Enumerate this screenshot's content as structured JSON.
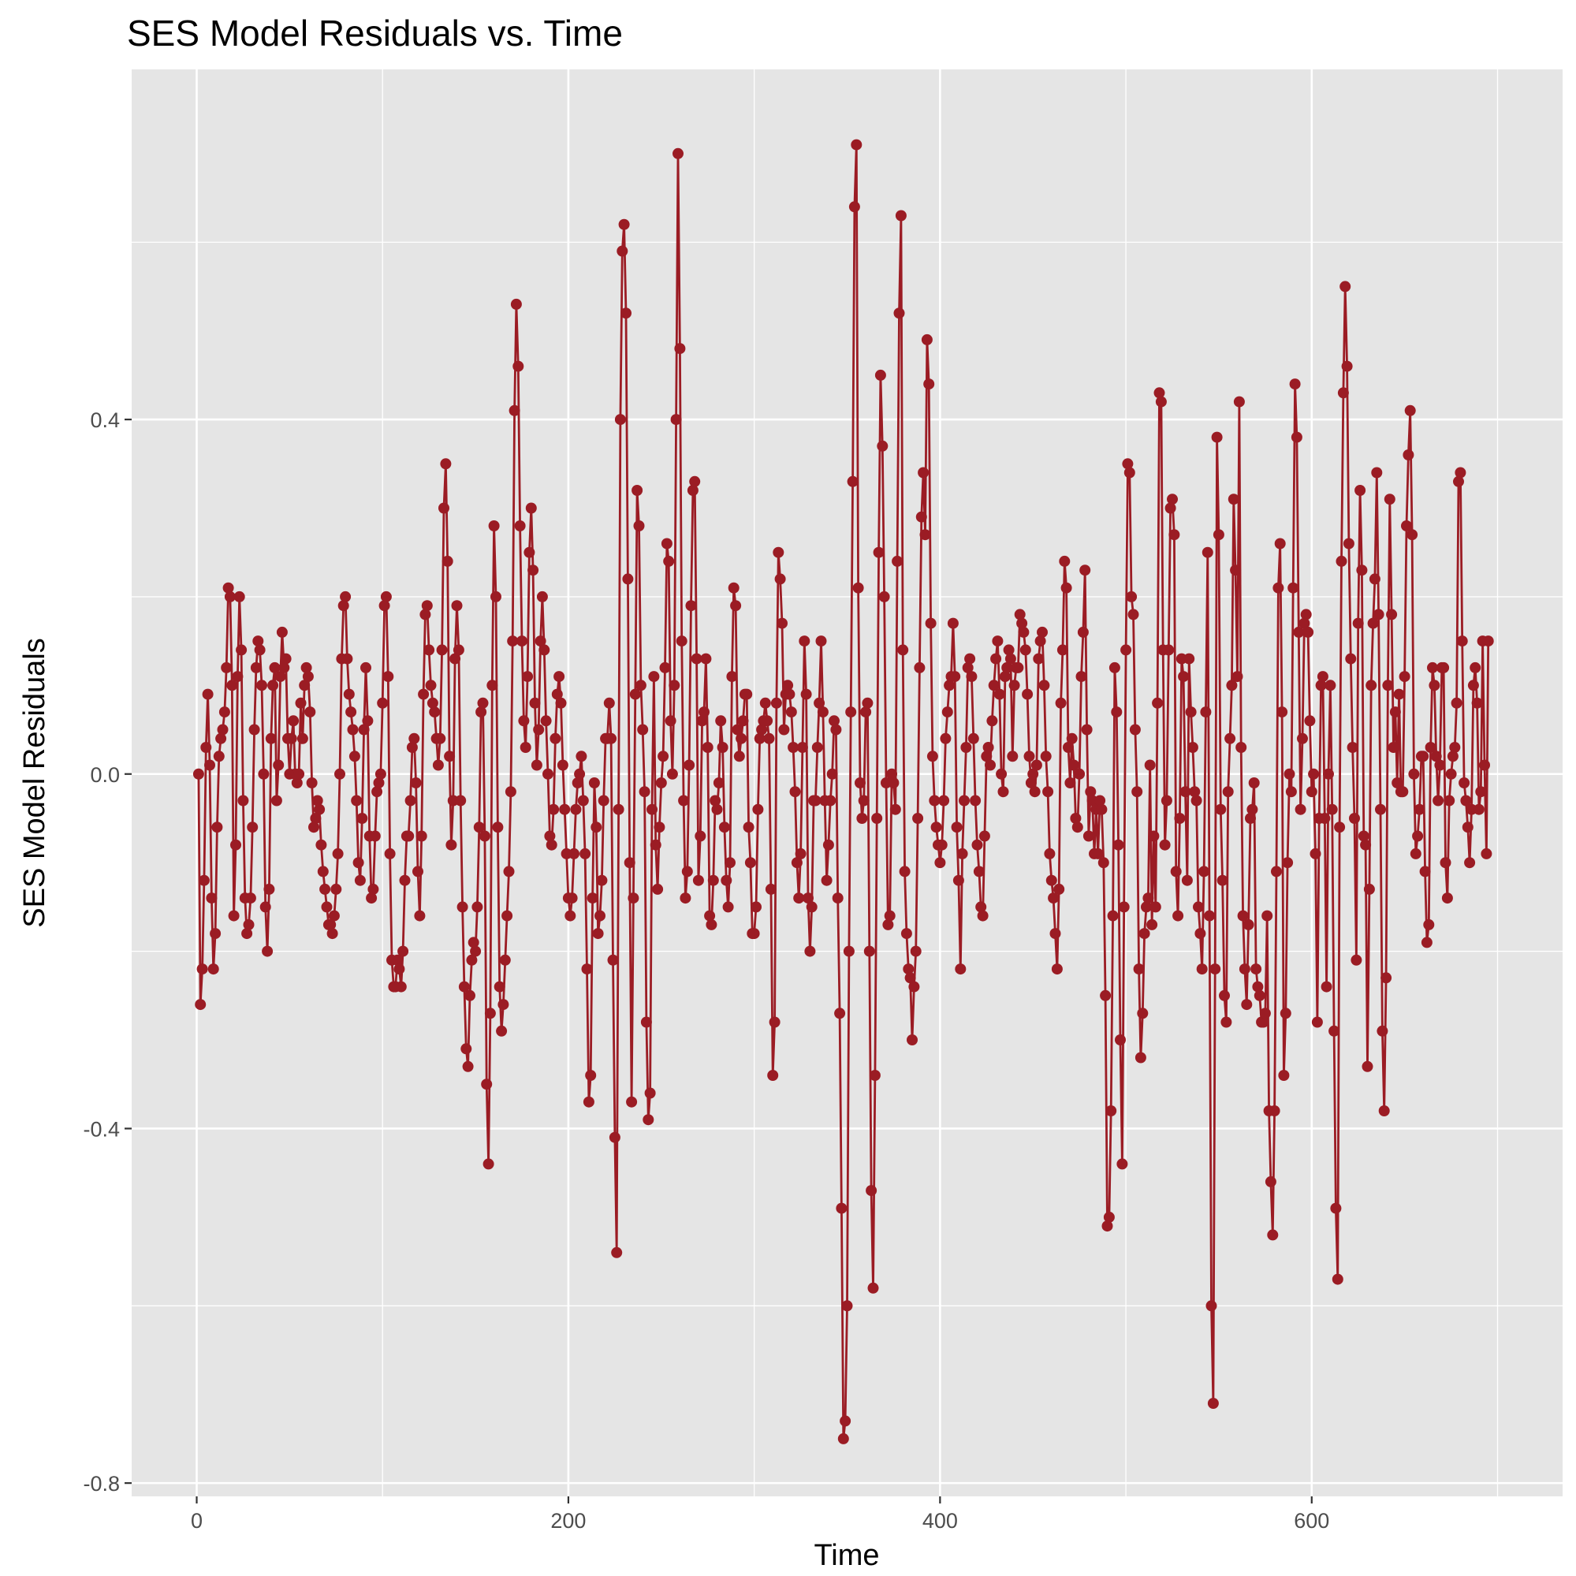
{
  "chart_data": {
    "type": "line",
    "title": "SES Model Residuals vs. Time",
    "xlabel": "Time",
    "ylabel": "SES Model Residuals",
    "xlim": [
      -35,
      735
    ],
    "ylim": [
      -0.815,
      0.795
    ],
    "x_ticks": [
      0,
      200,
      400,
      600
    ],
    "y_ticks": [
      -0.8,
      -0.4,
      0.0,
      0.4
    ],
    "x_tick_labels": [
      "0",
      "200",
      "400",
      "600"
    ],
    "y_tick_labels": [
      "-0.8",
      "-0.4",
      "0.0",
      "0.4"
    ],
    "grid": true,
    "markers": true,
    "series": [
      {
        "color": "#9b1c24",
        "x_start": 1,
        "x_step": 1,
        "values": [
          0.0,
          -0.26,
          -0.22,
          -0.12,
          0.03,
          0.09,
          0.01,
          -0.14,
          -0.22,
          -0.18,
          -0.06,
          0.02,
          0.04,
          0.05,
          0.07,
          0.12,
          0.21,
          0.2,
          0.1,
          -0.16,
          -0.08,
          0.11,
          0.2,
          0.14,
          -0.03,
          -0.14,
          -0.18,
          -0.17,
          -0.14,
          -0.06,
          0.05,
          0.12,
          0.15,
          0.14,
          0.1,
          0.0,
          -0.15,
          -0.2,
          -0.13,
          0.04,
          0.1,
          0.12,
          -0.03,
          0.01,
          0.11,
          0.16,
          0.12,
          0.13,
          0.04,
          0.0,
          0.04,
          0.06,
          0.0,
          -0.01,
          0.0,
          0.08,
          0.04,
          0.1,
          0.12,
          0.11,
          0.07,
          -0.01,
          -0.06,
          -0.05,
          -0.03,
          -0.04,
          -0.08,
          -0.11,
          -0.13,
          -0.15,
          -0.17,
          -0.17,
          -0.18,
          -0.16,
          -0.13,
          -0.09,
          0.0,
          0.13,
          0.19,
          0.2,
          0.13,
          0.09,
          0.07,
          0.05,
          0.02,
          -0.03,
          -0.1,
          -0.12,
          -0.05,
          0.05,
          0.12,
          0.06,
          -0.07,
          -0.14,
          -0.13,
          -0.07,
          -0.02,
          -0.01,
          0.0,
          0.08,
          0.19,
          0.2,
          0.11,
          -0.09,
          -0.21,
          -0.24,
          -0.24,
          -0.21,
          -0.22,
          -0.24,
          -0.2,
          -0.12,
          -0.07,
          -0.07,
          -0.03,
          0.03,
          0.04,
          -0.01,
          -0.11,
          -0.16,
          -0.07,
          0.09,
          0.18,
          0.19,
          0.14,
          0.1,
          0.08,
          0.07,
          0.04,
          0.01,
          0.04,
          0.14,
          0.3,
          0.35,
          0.24,
          0.02,
          -0.08,
          -0.03,
          0.13,
          0.19,
          0.14,
          -0.03,
          -0.15,
          -0.24,
          -0.31,
          -0.33,
          -0.25,
          -0.21,
          -0.19,
          -0.2,
          -0.15,
          -0.06,
          0.07,
          0.08,
          -0.07,
          -0.35,
          -0.44,
          -0.27,
          0.1,
          0.28,
          0.2,
          -0.06,
          -0.24,
          -0.29,
          -0.26,
          -0.21,
          -0.16,
          -0.11,
          -0.02,
          0.15,
          0.41,
          0.53,
          0.46,
          0.28,
          0.15,
          0.06,
          0.03,
          0.11,
          0.25,
          0.3,
          0.23,
          0.08,
          0.01,
          0.05,
          0.15,
          0.2,
          0.14,
          0.06,
          0.0,
          -0.07,
          -0.08,
          -0.04,
          0.04,
          0.09,
          0.11,
          0.08,
          0.01,
          -0.04,
          -0.09,
          -0.14,
          -0.16,
          -0.14,
          -0.09,
          -0.04,
          -0.01,
          0.0,
          0.02,
          -0.03,
          -0.09,
          -0.22,
          -0.37,
          -0.34,
          -0.14,
          -0.01,
          -0.06,
          -0.18,
          -0.16,
          -0.12,
          -0.03,
          0.04,
          0.04,
          0.08,
          0.04,
          -0.21,
          -0.41,
          -0.54,
          -0.04,
          0.4,
          0.59,
          0.62,
          0.52,
          0.22,
          -0.1,
          -0.37,
          -0.14,
          0.09,
          0.32,
          0.28,
          0.1,
          0.05,
          -0.02,
          -0.28,
          -0.39,
          -0.36,
          -0.04,
          0.11,
          -0.08,
          -0.13,
          -0.06,
          -0.01,
          0.02,
          0.12,
          0.26,
          0.24,
          0.06,
          0.0,
          0.1,
          0.4,
          0.7,
          0.48,
          0.15,
          -0.03,
          -0.14,
          -0.11,
          0.01,
          0.19,
          0.32,
          0.33,
          0.13,
          -0.12,
          -0.07,
          0.06,
          0.07,
          0.13,
          0.03,
          -0.16,
          -0.17,
          -0.12,
          -0.03,
          -0.04,
          -0.01,
          0.06,
          0.03,
          -0.06,
          -0.12,
          -0.15,
          -0.1,
          0.11,
          0.21,
          0.19,
          0.05,
          0.02,
          0.04,
          0.06,
          0.09,
          0.09,
          -0.06,
          -0.1,
          -0.18,
          -0.18,
          -0.15,
          -0.04,
          0.04,
          0.05,
          0.06,
          0.08,
          0.06,
          0.04,
          -0.13,
          -0.34,
          -0.28,
          0.08,
          0.25,
          0.22,
          0.17,
          0.05,
          0.09,
          0.1,
          0.09,
          0.07,
          0.03,
          -0.02,
          -0.1,
          -0.14,
          -0.09,
          0.03,
          0.15,
          0.09,
          -0.14,
          -0.2,
          -0.15,
          -0.03,
          -0.03,
          0.03,
          0.08,
          0.15,
          0.07,
          -0.03,
          -0.12,
          -0.08,
          -0.03,
          0.0,
          0.06,
          0.05,
          -0.14,
          -0.27,
          -0.49,
          -0.75,
          -0.73,
          -0.6,
          -0.2,
          0.07,
          0.33,
          0.64,
          0.71,
          0.21,
          -0.01,
          -0.05,
          -0.03,
          0.07,
          0.08,
          -0.2,
          -0.47,
          -0.58,
          -0.34,
          -0.05,
          0.25,
          0.45,
          0.37,
          0.2,
          -0.01,
          -0.17,
          -0.16,
          0.0,
          -0.01,
          -0.04,
          0.24,
          0.52,
          0.63,
          0.14,
          -0.11,
          -0.18,
          -0.22,
          -0.23,
          -0.3,
          -0.24,
          -0.2,
          -0.05,
          0.12,
          0.29,
          0.34,
          0.27,
          0.49,
          0.44,
          0.17,
          0.02,
          -0.03,
          -0.06,
          -0.08,
          -0.1,
          -0.08,
          -0.03,
          0.04,
          0.07,
          0.1,
          0.11,
          0.17,
          0.11,
          -0.06,
          -0.12,
          -0.22,
          -0.09,
          -0.03,
          0.03,
          0.12,
          0.13,
          0.11,
          0.04,
          -0.03,
          -0.08,
          -0.11,
          -0.15,
          -0.16,
          -0.07,
          0.02,
          0.03,
          0.01,
          0.06,
          0.1,
          0.13,
          0.15,
          0.09,
          0.0,
          -0.02,
          0.11,
          0.12,
          0.14,
          0.13,
          0.02,
          0.1,
          0.12,
          0.12,
          0.18,
          0.17,
          0.16,
          0.14,
          0.09,
          0.02,
          -0.01,
          0.0,
          -0.02,
          0.01,
          0.13,
          0.15,
          0.16,
          0.1,
          0.02,
          -0.02,
          -0.09,
          -0.12,
          -0.14,
          -0.18,
          -0.22,
          -0.13,
          0.08,
          0.14,
          0.24,
          0.21,
          0.03,
          -0.01,
          0.04,
          0.01,
          -0.05,
          -0.06,
          0.0,
          0.11,
          0.16,
          0.23,
          0.05,
          -0.07,
          -0.02,
          -0.03,
          -0.09,
          -0.04,
          -0.09,
          -0.03,
          -0.04,
          -0.1,
          -0.25,
          -0.51,
          -0.5,
          -0.38,
          -0.16,
          0.12,
          0.07,
          -0.08,
          -0.3,
          -0.44,
          -0.15,
          0.14,
          0.35,
          0.34,
          0.2,
          0.18,
          0.05,
          -0.02,
          -0.22,
          -0.32,
          -0.27,
          -0.18,
          -0.15,
          -0.14,
          0.01,
          -0.17,
          -0.07,
          -0.15,
          0.08,
          0.43,
          0.42,
          0.14,
          -0.08,
          -0.03,
          0.14,
          0.3,
          0.31,
          0.27,
          -0.11,
          -0.16,
          -0.05,
          0.13,
          0.11,
          -0.02,
          -0.12,
          0.13,
          0.07,
          0.03,
          -0.02,
          -0.03,
          -0.15,
          -0.18,
          -0.22,
          -0.11,
          0.07,
          0.25,
          -0.16,
          -0.6,
          -0.71,
          -0.22,
          0.38,
          0.27,
          -0.04,
          -0.12,
          -0.25,
          -0.28,
          -0.02,
          0.04,
          0.1,
          0.31,
          0.23,
          0.11,
          0.42,
          0.03,
          -0.16,
          -0.22,
          -0.26,
          -0.17,
          -0.05,
          -0.04,
          -0.01,
          -0.22,
          -0.24,
          -0.25,
          -0.28,
          -0.28,
          -0.27,
          -0.16,
          -0.38,
          -0.46,
          -0.52,
          -0.38,
          -0.11,
          0.21,
          0.26,
          0.07,
          -0.34,
          -0.27,
          -0.1,
          0.0,
          -0.02,
          0.21,
          0.44,
          0.38,
          0.16,
          -0.04,
          0.04,
          0.17,
          0.18,
          0.16,
          0.06,
          -0.02,
          0.0,
          -0.09,
          -0.28,
          -0.05,
          0.1,
          0.11,
          -0.05,
          -0.24,
          0.0,
          0.1,
          -0.04,
          -0.29,
          -0.49,
          -0.57,
          -0.06,
          0.24,
          0.43,
          0.55,
          0.46,
          0.26,
          0.13,
          0.03,
          -0.05,
          -0.21,
          0.17,
          0.32,
          0.23,
          -0.07,
          -0.08,
          -0.33,
          -0.13,
          0.1,
          0.17,
          0.22,
          0.34,
          0.18,
          -0.04,
          -0.29,
          -0.38,
          -0.23,
          0.1,
          0.31,
          0.18,
          0.03,
          0.07,
          -0.01,
          0.09,
          -0.02,
          -0.02,
          0.11,
          0.28,
          0.36,
          0.41,
          0.27,
          0.0,
          -0.09,
          -0.07,
          -0.04,
          0.02,
          0.02,
          -0.11,
          -0.19,
          -0.17,
          0.03,
          0.12,
          0.1,
          0.02,
          -0.03,
          0.01,
          0.12,
          0.12,
          -0.1,
          -0.14,
          -0.03,
          0.0,
          0.02,
          0.03,
          0.08,
          0.33,
          0.34,
          0.15,
          -0.01,
          -0.03,
          -0.06,
          -0.1,
          -0.04,
          0.1,
          0.12,
          0.08,
          -0.04,
          -0.02,
          0.15,
          0.01,
          -0.09,
          0.15
        ]
      }
    ]
  }
}
